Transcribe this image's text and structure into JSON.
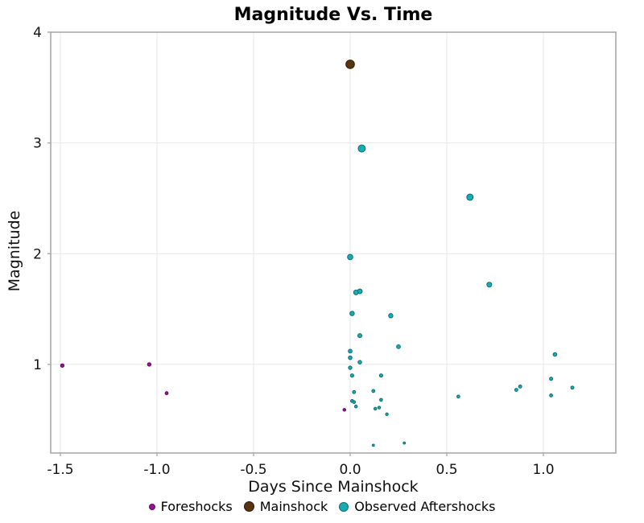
{
  "title": "Magnitude Vs. Time",
  "chart_data": {
    "type": "scatter",
    "title": "Magnitude Vs. Time",
    "xlabel": "Days Since Mainshock",
    "ylabel": "Magnitude",
    "xlim": [
      -1.55,
      1.375
    ],
    "ylim": [
      0.2,
      4.0
    ],
    "x_ticks": [
      -1.5,
      -1.0,
      -0.5,
      0.0,
      0.5,
      1.0
    ],
    "x_tick_labels": [
      "-1.5",
      "-1.0",
      "-0.5",
      "0.0",
      "0.5",
      "1.0"
    ],
    "y_ticks": [
      1,
      2,
      3,
      4
    ],
    "y_tick_labels": [
      "1",
      "2",
      "3",
      "4"
    ],
    "grid": true,
    "legend_position": "bottom",
    "panel_border_color": "#a8a8a8",
    "gridline_color": "#e7e7e7",
    "marker": {
      "base_radius": 1.05,
      "radius_per_magnitude": 1.15
    },
    "series": [
      {
        "name": "Foreshocks",
        "color": "#9c109c",
        "edge_color": "#5e0a5e",
        "points": [
          [
            -1.49,
            0.99
          ],
          [
            -1.04,
            1.0
          ],
          [
            -0.95,
            0.74
          ],
          [
            -0.03,
            0.59
          ]
        ]
      },
      {
        "name": "Mainshock",
        "color": "#5a3310",
        "edge_color": "#2f1a06",
        "points": [
          [
            0.0,
            3.71
          ]
        ]
      },
      {
        "name": "Observed Aftershocks",
        "color": "#16adb3",
        "edge_color": "#0a6e73",
        "points": [
          [
            0.06,
            2.95
          ],
          [
            0.62,
            2.51
          ],
          [
            0.0,
            1.97
          ],
          [
            0.72,
            1.72
          ],
          [
            0.05,
            1.66
          ],
          [
            0.03,
            1.65
          ],
          [
            0.01,
            1.46
          ],
          [
            0.21,
            1.44
          ],
          [
            0.05,
            1.26
          ],
          [
            0.25,
            1.16
          ],
          [
            0.0,
            1.12
          ],
          [
            0.0,
            1.06
          ],
          [
            0.05,
            1.02
          ],
          [
            0.0,
            0.97
          ],
          [
            0.01,
            0.9
          ],
          [
            0.16,
            0.9
          ],
          [
            1.06,
            1.09
          ],
          [
            1.04,
            0.87
          ],
          [
            1.15,
            0.79
          ],
          [
            1.04,
            0.72
          ],
          [
            0.88,
            0.8
          ],
          [
            0.86,
            0.77
          ],
          [
            0.56,
            0.71
          ],
          [
            0.12,
            0.76
          ],
          [
            0.02,
            0.75
          ],
          [
            0.16,
            0.68
          ],
          [
            0.01,
            0.67
          ],
          [
            0.02,
            0.66
          ],
          [
            0.03,
            0.62
          ],
          [
            0.15,
            0.61
          ],
          [
            0.13,
            0.6
          ],
          [
            0.19,
            0.55
          ],
          [
            0.28,
            0.29
          ],
          [
            0.12,
            0.27
          ]
        ]
      }
    ]
  }
}
